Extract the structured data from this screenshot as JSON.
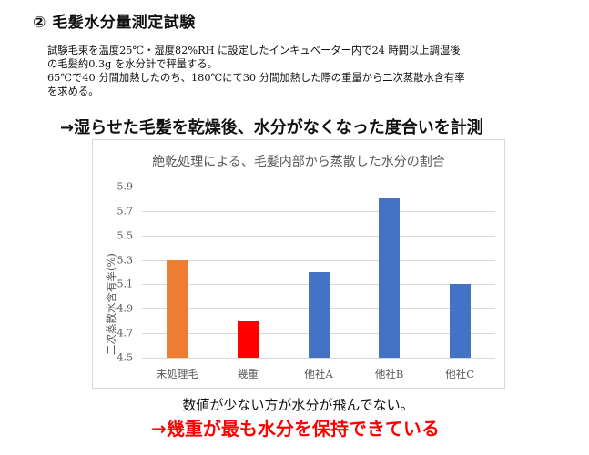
{
  "slide": {
    "title": "② 毛髪水分量測定試験",
    "description": "試験毛束を温度25℃・湿度82%RH に設定したインキュベーター内で24 時間以上調湿後\nの毛髪約0.3g を水分計で秤量する。\n65℃で40 分間加熱したのち、180℃にて30 分間加熱した際の重量から二次蒸散水含有率\nを求める。",
    "method_summary": "→湿らせた毛髪を乾燥後、水分がなくなった度合いを計測",
    "note": "数値が少ない方が水分が飛んでない。",
    "conclusion": "→幾重が最も水分を保持できている"
  },
  "chart_data": {
    "type": "bar",
    "title": "絶乾処理による、毛髪内部から蒸散した水分の割合",
    "xlabel": "",
    "ylabel": "二次蒸散水含有率(%)",
    "categories": [
      "未処理毛",
      "幾重",
      "他社A",
      "他社B",
      "他社C"
    ],
    "values": [
      5.3,
      4.8,
      5.2,
      5.8,
      5.1
    ],
    "colors": [
      "#ed7d31",
      "#ff0000",
      "#4472c4",
      "#4472c4",
      "#4472c4"
    ],
    "ylim": [
      4.5,
      5.9
    ],
    "yticks": [
      "5.9",
      "5.7",
      "5.5",
      "5.3",
      "5.1",
      "4.9",
      "4.7",
      "4.5"
    ],
    "grid": true,
    "legend": "none"
  }
}
